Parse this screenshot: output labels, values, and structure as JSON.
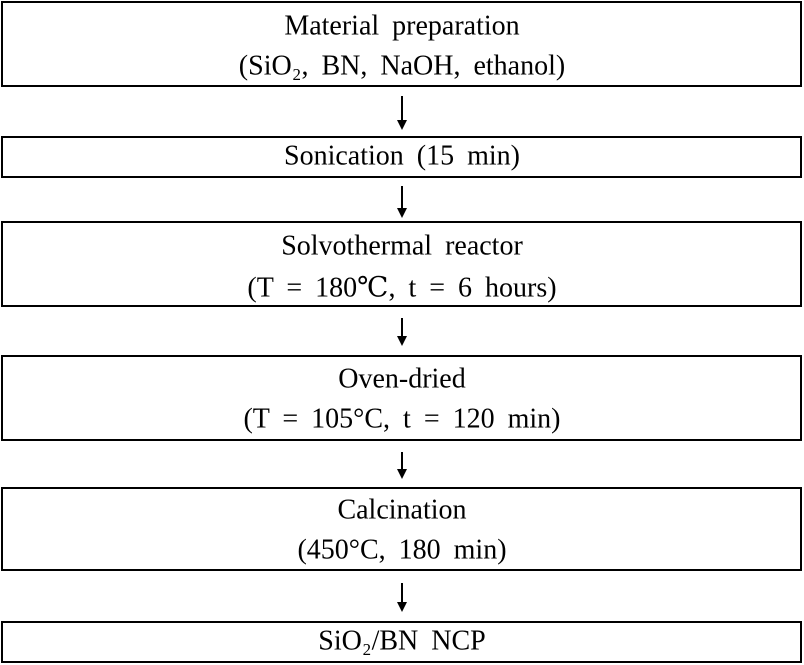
{
  "steps": [
    {
      "lines": [
        "Material preparation",
        "(SiO₂, BN, NaOH, ethanol)"
      ]
    },
    {
      "lines": [
        "Sonication (15 min)"
      ]
    },
    {
      "lines": [
        "Solvothermal reactor",
        "(T = 180℃, t = 6 hours)"
      ]
    },
    {
      "lines": [
        "Oven-dried",
        "(T = 105°C, t = 120 min)"
      ]
    },
    {
      "lines": [
        "Calcination",
        "(450°C, 180 min)"
      ]
    },
    {
      "lines": [
        "SiO₂/BN NCP"
      ]
    }
  ]
}
